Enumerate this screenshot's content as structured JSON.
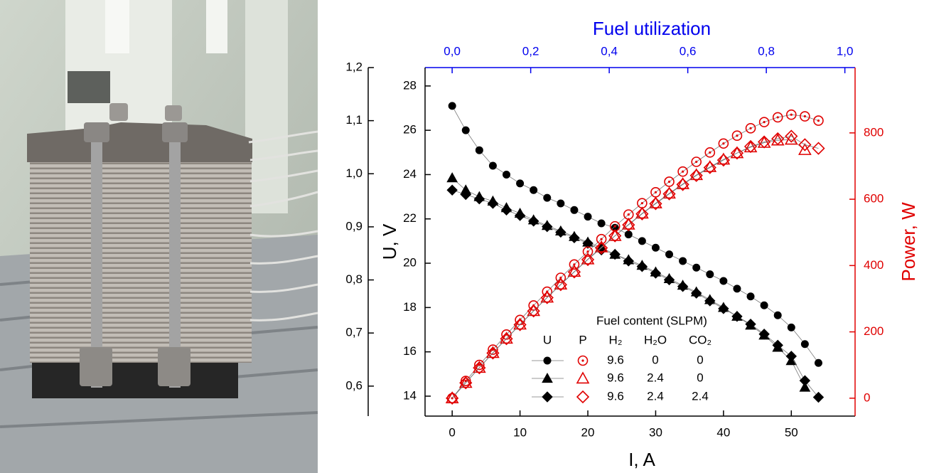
{
  "chart_data": {
    "type": "scatter",
    "title": "Fuel utilization",
    "xlabel": "I, A",
    "ylabel": "U, V",
    "y2label": "Power, W",
    "xlim": [
      -4,
      59.4
    ],
    "xticks": [
      0,
      10,
      20,
      30,
      40,
      50
    ],
    "x2lim": [
      -0.069,
      1.026
    ],
    "x2ticks": [
      {
        "value": 0,
        "label": "0,0"
      },
      {
        "value": 0.2,
        "label": "0,2"
      },
      {
        "value": 0.4,
        "label": "0,4"
      },
      {
        "value": 0.6,
        "label": "0,6"
      },
      {
        "value": 0.8,
        "label": "0,8"
      },
      {
        "value": 1,
        "label": "1,0"
      }
    ],
    "ylim": [
      13.1,
      28.83
    ],
    "yticks": [
      14,
      16,
      18,
      20,
      22,
      24,
      26,
      28
    ],
    "y2lim": [
      -54,
      997
    ],
    "y2ticks": [
      0,
      200,
      400,
      600,
      800
    ],
    "y3lim": [
      0.5435,
      1.2
    ],
    "y3ticks": [
      {
        "value": 0.6,
        "label": "0,6"
      },
      {
        "value": 0.7,
        "label": "0,7"
      },
      {
        "value": 0.8,
        "label": "0,8"
      },
      {
        "value": 0.9,
        "label": "0,9"
      },
      {
        "value": 1.0,
        "label": "1,0"
      },
      {
        "value": 1.1,
        "label": "1,1"
      },
      {
        "value": 1.2,
        "label": "1,2"
      }
    ],
    "axis_colors": {
      "x2": "#0000ee",
      "y2": "#e00000",
      "y": "#000000"
    },
    "series": [
      {
        "axis": "y",
        "marker": "circle",
        "color": "#000000",
        "filled": true,
        "x": [
          0,
          2,
          4,
          6,
          8,
          10,
          12,
          14,
          16,
          18,
          20,
          22,
          24,
          26,
          28,
          30,
          32,
          34,
          36,
          38,
          40,
          42,
          44,
          46,
          48,
          50,
          52,
          54
        ],
        "values": [
          27.1,
          26.0,
          25.1,
          24.4,
          24.0,
          23.6,
          23.3,
          22.95,
          22.7,
          22.4,
          22.1,
          21.8,
          21.6,
          21.3,
          21.0,
          20.7,
          20.4,
          20.1,
          19.8,
          19.5,
          19.2,
          18.85,
          18.5,
          18.1,
          17.65,
          17.1,
          16.35,
          15.5
        ]
      },
      {
        "axis": "y",
        "marker": "triangle",
        "color": "#000000",
        "filled": true,
        "x": [
          0,
          2,
          4,
          6,
          8,
          10,
          12,
          14,
          16,
          18,
          20,
          22,
          24,
          26,
          28,
          30,
          32,
          34,
          36,
          38,
          40,
          42,
          44,
          46,
          48,
          50,
          52
        ],
        "values": [
          23.85,
          23.3,
          23.0,
          22.8,
          22.5,
          22.25,
          21.95,
          21.7,
          21.45,
          21.2,
          20.95,
          20.7,
          20.4,
          20.15,
          19.9,
          19.6,
          19.3,
          19.0,
          18.7,
          18.35,
          18.0,
          17.6,
          17.2,
          16.75,
          16.2,
          15.6,
          14.4
        ]
      },
      {
        "axis": "y",
        "marker": "diamond",
        "color": "#000000",
        "filled": true,
        "x": [
          0,
          2,
          4,
          6,
          8,
          10,
          12,
          14,
          16,
          18,
          20,
          22,
          24,
          26,
          28,
          30,
          32,
          34,
          36,
          38,
          40,
          42,
          44,
          46,
          48,
          50,
          52,
          54
        ],
        "values": [
          23.3,
          23.1,
          22.9,
          22.7,
          22.4,
          22.15,
          21.9,
          21.65,
          21.4,
          21.15,
          20.9,
          20.6,
          20.4,
          20.1,
          19.85,
          19.55,
          19.25,
          18.95,
          18.65,
          18.3,
          17.95,
          17.6,
          17.25,
          16.8,
          16.3,
          15.8,
          14.7,
          13.95
        ]
      },
      {
        "axis": "y2",
        "marker": "circle-dot",
        "color": "#e00000",
        "filled": false,
        "x": [
          0,
          2,
          4,
          6,
          8,
          10,
          12,
          14,
          16,
          18,
          20,
          22,
          24,
          26,
          28,
          30,
          32,
          34,
          36,
          38,
          40,
          42,
          44,
          46,
          48,
          50,
          52,
          54
        ],
        "values": [
          0,
          52,
          100.4,
          146.4,
          192,
          236,
          279.6,
          321.3,
          363.2,
          403.2,
          442,
          479.6,
          518.4,
          553.8,
          588,
          621,
          652.8,
          683.4,
          712.8,
          741,
          768,
          791.7,
          814,
          832.6,
          847,
          855,
          850,
          837
        ]
      },
      {
        "axis": "y2",
        "marker": "triangle",
        "color": "#e00000",
        "filled": false,
        "x": [
          0,
          2,
          4,
          6,
          8,
          10,
          12,
          14,
          16,
          18,
          20,
          22,
          24,
          26,
          28,
          30,
          32,
          34,
          36,
          38,
          40,
          42,
          44,
          46,
          48,
          50,
          52
        ],
        "values": [
          0,
          46.6,
          92,
          136.8,
          180,
          222.5,
          263.4,
          303.8,
          343.2,
          381.6,
          419,
          455.4,
          489.6,
          523.9,
          557.2,
          588,
          617.6,
          646,
          673.2,
          697.3,
          720,
          739.2,
          756.8,
          770.5,
          777.6,
          780,
          748.8
        ]
      },
      {
        "axis": "y2",
        "marker": "diamond",
        "color": "#e00000",
        "filled": false,
        "x": [
          0,
          2,
          4,
          6,
          8,
          10,
          12,
          14,
          16,
          18,
          20,
          22,
          24,
          26,
          28,
          30,
          32,
          34,
          36,
          38,
          40,
          42,
          44,
          46,
          48,
          50,
          52,
          54
        ],
        "values": [
          0,
          46.2,
          91.6,
          136.2,
          179.2,
          221.5,
          262.8,
          303.1,
          342.4,
          380.7,
          418,
          453.2,
          489.6,
          522.6,
          555.8,
          586.5,
          616,
          644.3,
          671.4,
          695.4,
          718,
          739.2,
          759,
          772.8,
          782.4,
          790,
          764.4,
          753.3
        ]
      }
    ],
    "legend": {
      "title": "Fuel content (SLPM)",
      "columns": [
        "U",
        "P",
        "H₂",
        "H₂O",
        "CO₂"
      ],
      "rows": [
        [
          9.6,
          0,
          0
        ],
        [
          9.6,
          2.4,
          0
        ],
        [
          9.6,
          2.4,
          2.4
        ]
      ]
    }
  }
}
